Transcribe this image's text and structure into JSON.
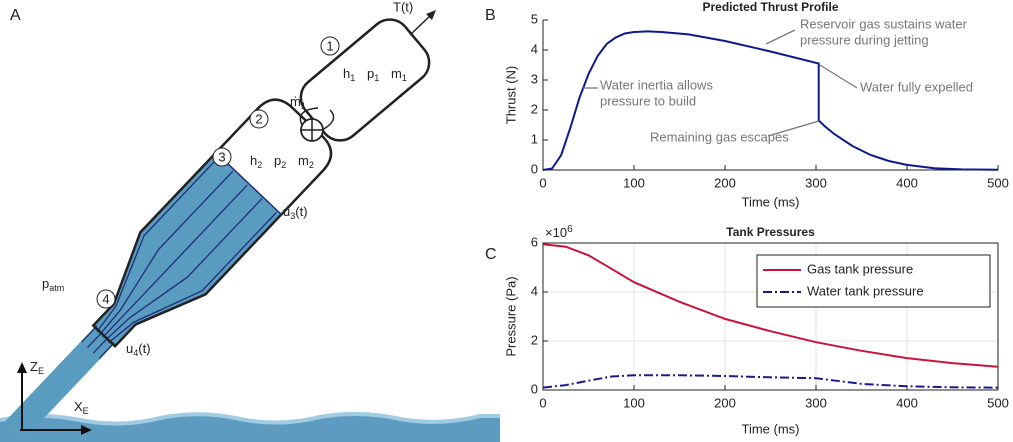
{
  "panels": {
    "a": "A",
    "b": "B",
    "c": "C"
  },
  "diagram": {
    "thrust": "T(t)",
    "stations": [
      "1",
      "2",
      "3",
      "4"
    ],
    "chamber1": [
      {
        "text": "h",
        "sub": "1"
      },
      {
        "text": "p",
        "sub": "1"
      },
      {
        "text": "m",
        "sub": "1"
      }
    ],
    "mass_flow": {
      "text": "ṁ",
      "sub": "1"
    },
    "chamber2": [
      {
        "text": "h",
        "sub": "2"
      },
      {
        "text": "p",
        "sub": "2"
      },
      {
        "text": "m",
        "sub": "2"
      }
    ],
    "u3": {
      "text": "u",
      "sub": "3",
      "suffix": "(t)"
    },
    "p_atm": {
      "text": "p",
      "sub": "atm"
    },
    "u4": {
      "text": "u",
      "sub": "4",
      "suffix": "(t)"
    },
    "z_axis": {
      "text": "Z",
      "sub": "E"
    },
    "x_axis": {
      "text": "X",
      "sub": "E"
    }
  },
  "chart_data": [
    {
      "type": "line",
      "title": "Predicted Thrust Profile",
      "x_label": "Time (ms)",
      "y_label": "Thrust (N)",
      "x": [
        0,
        10,
        20,
        30,
        40,
        50,
        60,
        70,
        80,
        90,
        100,
        115,
        130,
        160,
        200,
        250,
        303,
        303,
        310,
        320,
        340,
        360,
        380,
        400,
        430,
        460,
        500
      ],
      "series": [
        {
          "color": "#0d1a8c",
          "values": [
            0,
            0.05,
            0.5,
            1.4,
            2.4,
            3.2,
            3.8,
            4.2,
            4.42,
            4.55,
            4.6,
            4.62,
            4.6,
            4.52,
            4.3,
            3.95,
            3.55,
            1.65,
            1.45,
            1.2,
            0.8,
            0.5,
            0.3,
            0.17,
            0.06,
            0.02,
            0.01
          ]
        }
      ],
      "xlim": [
        0,
        500
      ],
      "xticks": [
        0,
        100,
        200,
        300,
        400,
        500
      ],
      "ylim": [
        0,
        5
      ],
      "yticks": [
        0,
        1,
        2,
        3,
        4,
        5
      ],
      "grid": false,
      "annotations": [
        {
          "text": [
            "Reservoir gas sustains water",
            "pressure during jetting"
          ]
        },
        {
          "text": [
            "Water inertia allows",
            "pressure to build"
          ]
        },
        {
          "text": [
            "Water fully expelled"
          ]
        },
        {
          "text": [
            "Remaining gas escapes"
          ]
        }
      ]
    },
    {
      "type": "line",
      "title": "Tank Pressures",
      "x_label": "Time (ms)",
      "y_label": "Pressure (Pa)",
      "y_multiplier": {
        "base": "×10",
        "exponent": "6"
      },
      "x": [
        0,
        25,
        50,
        75,
        100,
        150,
        200,
        250,
        300,
        350,
        400,
        450,
        500
      ],
      "series": [
        {
          "name": "Gas tank pressure",
          "color": "#c8143c",
          "dash": "solid",
          "values": [
            5950000,
            5850000,
            5500000,
            4950000,
            4400000,
            3600000,
            2900000,
            2400000,
            1950000,
            1600000,
            1300000,
            1100000,
            950000
          ]
        },
        {
          "name": "Water tank pressure",
          "color": "#1a1a8c",
          "dash": "dashdot",
          "values": [
            100000,
            200000,
            380000,
            550000,
            600000,
            600000,
            570000,
            520000,
            480000,
            250000,
            150000,
            110000,
            100000
          ]
        }
      ],
      "xlim": [
        0,
        500
      ],
      "xticks": [
        0,
        100,
        200,
        300,
        400,
        500
      ],
      "ylim": [
        0,
        6000000
      ],
      "yticks": [
        {
          "value": 0,
          "label": "0"
        },
        {
          "value": 2000000,
          "label": "2"
        },
        {
          "value": 4000000,
          "label": "4"
        },
        {
          "value": 6000000,
          "label": "6"
        }
      ],
      "grid": true,
      "legend": "upper right"
    }
  ]
}
